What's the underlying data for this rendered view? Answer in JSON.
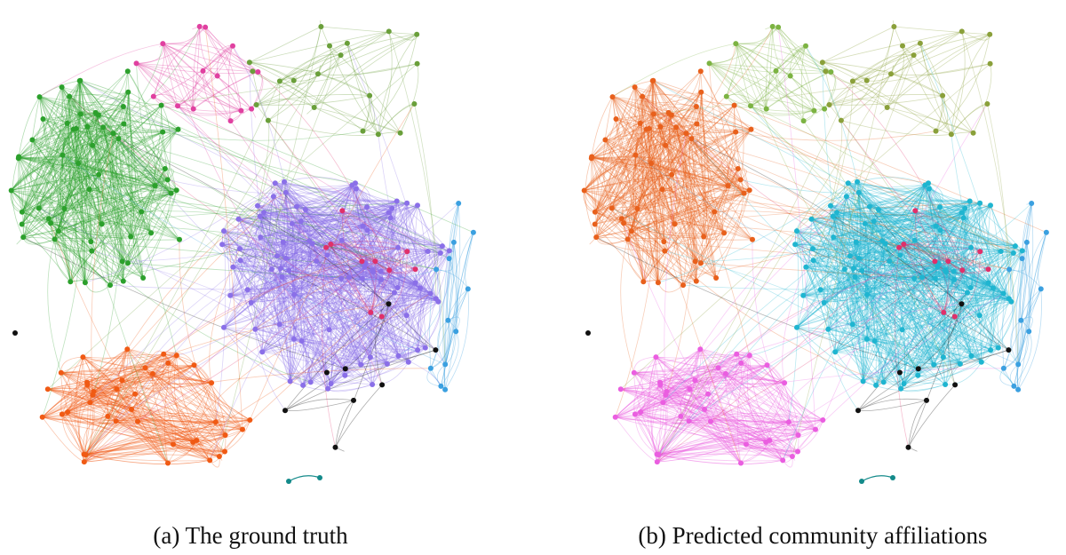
{
  "figure": {
    "panels": [
      {
        "caption": "(a) The ground truth"
      },
      {
        "caption": "(b) Predicted community affiliations"
      }
    ]
  }
}
